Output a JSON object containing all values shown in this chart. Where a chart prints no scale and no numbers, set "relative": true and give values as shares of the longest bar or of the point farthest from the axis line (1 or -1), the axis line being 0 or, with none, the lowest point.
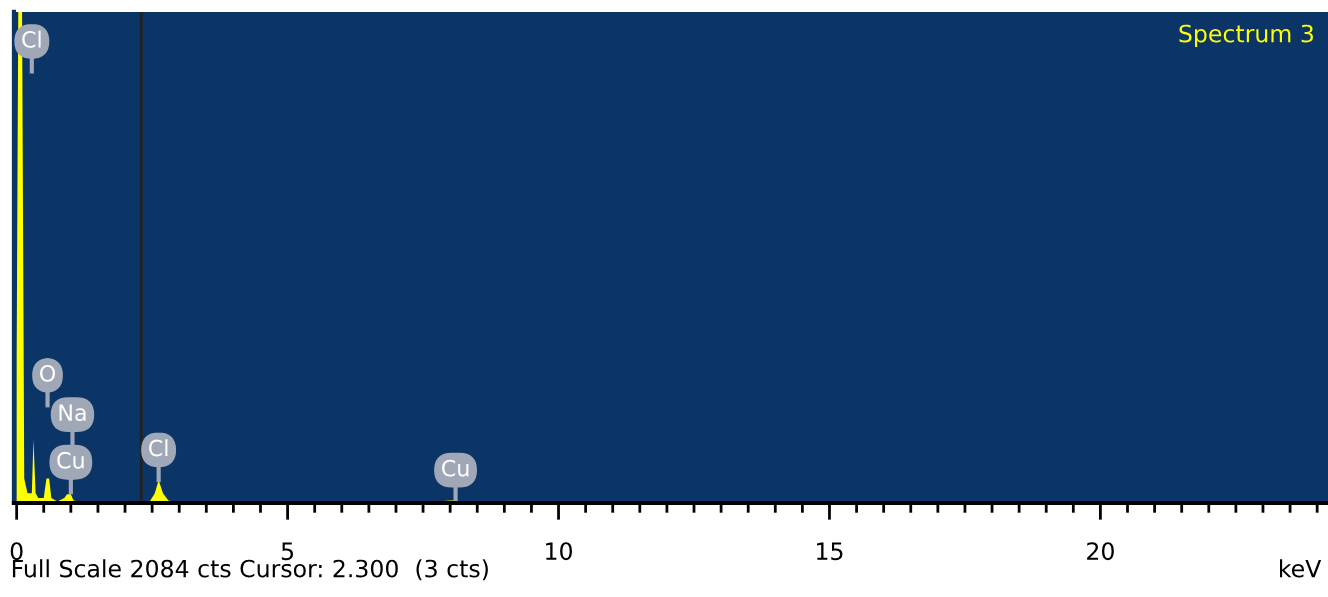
{
  "chart_data": {
    "type": "area",
    "title": "Spectrum 3",
    "xlabel": "keV",
    "relative": true,
    "x": [
      0.0,
      0.03,
      0.1,
      0.14,
      0.2,
      0.28,
      0.31,
      0.35,
      0.4,
      0.5,
      0.55,
      0.6,
      0.64,
      0.75,
      0.88,
      0.93,
      1.0,
      1.05,
      1.2,
      2.45,
      2.55,
      2.62,
      2.7,
      2.8,
      2.95,
      7.5,
      8.0,
      8.1,
      8.3,
      24.0
    ],
    "series": [
      {
        "color": "#ffff00",
        "values": [
          0.3,
          1,
          1,
          0.05,
          0.02,
          0.02,
          0.13,
          0.02,
          0.01,
          0.01,
          0.05,
          0.05,
          0.01,
          0.003,
          0.01,
          0.018,
          0.018,
          0.005,
          0.002,
          0.002,
          0.02,
          0.047,
          0.02,
          0.005,
          0.002,
          0.001,
          0.005,
          0.005,
          0.001,
          0.0005
        ]
      }
    ],
    "xlim": [
      -0.05,
      24.2
    ],
    "xticks": [
      0,
      {
        "value": 0.5,
        "label": null
      },
      {
        "value": 1,
        "label": null
      },
      {
        "value": 1.5,
        "label": null
      },
      {
        "value": 2,
        "label": null
      },
      {
        "value": 2.5,
        "label": null
      },
      {
        "value": 3,
        "label": null
      },
      {
        "value": 3.5,
        "label": null
      },
      {
        "value": 4,
        "label": null
      },
      {
        "value": 4.5,
        "label": null
      },
      5,
      {
        "value": 5.5,
        "label": null
      },
      {
        "value": 6,
        "label": null
      },
      {
        "value": 6.5,
        "label": null
      },
      {
        "value": 7,
        "label": null
      },
      {
        "value": 7.5,
        "label": null
      },
      {
        "value": 8,
        "label": null
      },
      {
        "value": 8.5,
        "label": null
      },
      {
        "value": 9,
        "label": null
      },
      {
        "value": 9.5,
        "label": null
      },
      10,
      {
        "value": 10.5,
        "label": null
      },
      {
        "value": 11,
        "label": null
      },
      {
        "value": 11.5,
        "label": null
      },
      {
        "value": 12,
        "label": null
      },
      {
        "value": 12.5,
        "label": null
      },
      {
        "value": 13,
        "label": null
      },
      {
        "value": 13.5,
        "label": null
      },
      {
        "value": 14,
        "label": null
      },
      {
        "value": 14.5,
        "label": null
      },
      15,
      {
        "value": 15.5,
        "label": null
      },
      {
        "value": 16,
        "label": null
      },
      {
        "value": 16.5,
        "label": null
      },
      {
        "value": 17,
        "label": null
      },
      {
        "value": 17.5,
        "label": null
      },
      {
        "value": 18,
        "label": null
      },
      {
        "value": 18.5,
        "label": null
      },
      {
        "value": 19,
        "label": null
      },
      {
        "value": 19.5,
        "label": null
      },
      20,
      {
        "value": 20.5,
        "label": null
      },
      {
        "value": 21,
        "label": null
      },
      {
        "value": 21.5,
        "label": null
      },
      {
        "value": 22,
        "label": null
      },
      {
        "value": 22.5,
        "label": null
      },
      {
        "value": 23,
        "label": null
      },
      {
        "value": 23.5,
        "label": null
      },
      {
        "value": 24,
        "label": null
      }
    ],
    "ref_lines": [
      {
        "axis": "x",
        "value": 2.3,
        "color": "#222222"
      }
    ],
    "annotations": [
      {
        "text": "Cl",
        "x": 0.28,
        "y": 0.94
      },
      {
        "text": "O",
        "x": 0.57,
        "y": 0.26
      },
      {
        "text": "Na",
        "x": 1.03,
        "y": 0.18
      },
      {
        "text": "Cu",
        "x": 1.0,
        "y": 0.083
      },
      {
        "text": "Cl",
        "x": 2.62,
        "y": 0.108
      },
      {
        "text": "Cu",
        "x": 8.1,
        "y": 0.067
      },
      "Full Scale 2084 cts Cursor: 2.300  (3 cts)"
    ],
    "grid": false
  }
}
